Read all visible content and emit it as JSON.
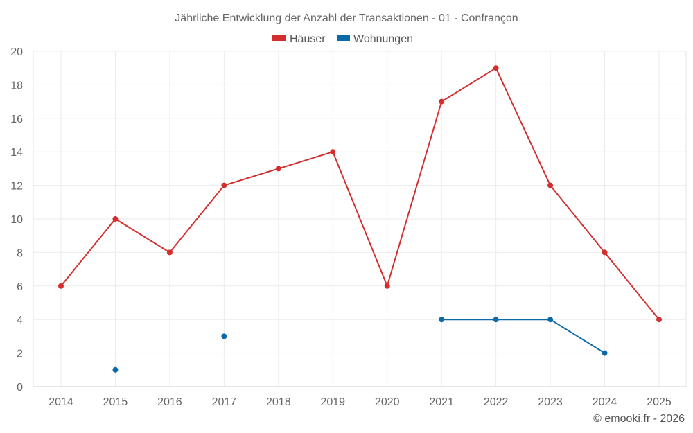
{
  "chart_data": {
    "type": "line",
    "title": "Jährliche Entwicklung der Anzahl der Transaktionen - 01 - Confrançon",
    "categories": [
      "2014",
      "2015",
      "2016",
      "2017",
      "2018",
      "2019",
      "2020",
      "2021",
      "2022",
      "2023",
      "2024",
      "2025"
    ],
    "series": [
      {
        "name": "Häuser",
        "color": "#d32f2f",
        "values": [
          6,
          10,
          8,
          12,
          13,
          14,
          6,
          17,
          19,
          12,
          8,
          4
        ]
      },
      {
        "name": "Wohnungen",
        "color": "#0d6aa8",
        "values": [
          null,
          1,
          null,
          3,
          null,
          null,
          null,
          4,
          4,
          4,
          2,
          null
        ]
      }
    ],
    "ylim": [
      0,
      20
    ],
    "yticks": [
      "0",
      "2",
      "4",
      "6",
      "8",
      "10",
      "12",
      "14",
      "16",
      "18",
      "20"
    ],
    "grid": true,
    "legend_position": "top-center",
    "xlabel": "",
    "ylabel": ""
  },
  "credit": "© emooki.fr - 2026"
}
